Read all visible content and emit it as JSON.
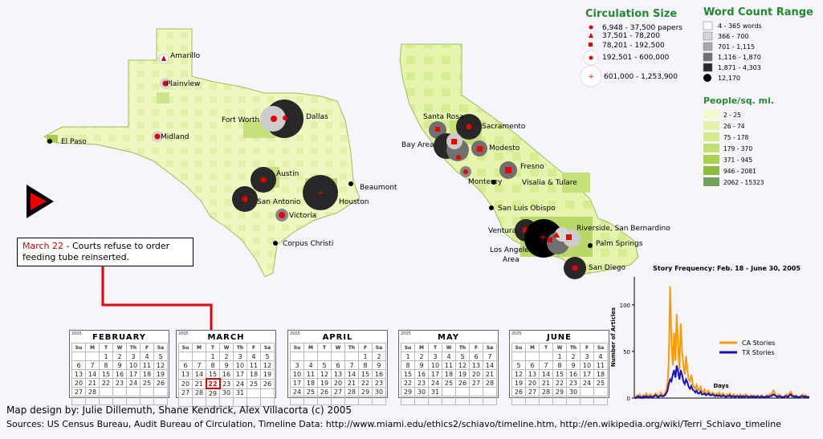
{
  "circulation_legend": {
    "title": "Circulation Size",
    "items": [
      "6,948 - 37,500 papers",
      "37,501 - 78,200",
      "78,201 - 192,500",
      "192,501 - 600,000",
      "601,000 - 1,253,900"
    ]
  },
  "word_count_legend": {
    "title": "Word Count Range",
    "items": [
      {
        "label": "4 - 365 words",
        "color": "#ffffff"
      },
      {
        "label": "366 - 700",
        "color": "#d4d4d4"
      },
      {
        "label": "701 - 1,115",
        "color": "#a8a8a8"
      },
      {
        "label": "1,116 - 1,870",
        "color": "#707070"
      },
      {
        "label": "1,871 - 4,303",
        "color": "#282828"
      },
      {
        "label": "12,170",
        "color": "#000000"
      }
    ]
  },
  "density_legend": {
    "title": "People/sq. mi.",
    "items": [
      {
        "label": "2 - 25",
        "color": "#f2fac8"
      },
      {
        "label": "26 - 74",
        "color": "#e4f3a8"
      },
      {
        "label": "75 - 178",
        "color": "#d5ea8c"
      },
      {
        "label": "179 - 370",
        "color": "#c2e06d"
      },
      {
        "label": "371 - 945",
        "color": "#a8d14d"
      },
      {
        "label": "946 - 2081",
        "color": "#8dbd38"
      },
      {
        "label": "2062 - 15323",
        "color": "#76a060"
      }
    ]
  },
  "texas_cities": [
    "Amarillo",
    "Plainview",
    "Fort Worth",
    "Dallas",
    "El Paso",
    "Midland",
    "Austin",
    "Beaumont",
    "San Antonio",
    "Houston",
    "Victoria",
    "Corpus Christi"
  ],
  "california_cities": [
    "Santa Rosa",
    "Sacramento",
    "Bay Area",
    "Modesto",
    "Fresno",
    "Monterey",
    "Visalia & Tulare",
    "San Luis Obispo",
    "Ventura",
    "Riverside, San Bernardino",
    "Palm Springs",
    "Los Angeles",
    "Area",
    "San Diego"
  ],
  "annotation": {
    "date": "March 22",
    "text": " -  Courts refuse to order",
    "text2": "feeding tube reinserted."
  },
  "calendars": [
    {
      "year": "2005",
      "month": "FEBRUARY",
      "start": 2,
      "days": 28
    },
    {
      "year": "2005",
      "month": "MARCH",
      "start": 2,
      "days": 31,
      "selected": 22
    },
    {
      "year": "2005",
      "month": "APRIL",
      "start": 5,
      "days": 30
    },
    {
      "year": "2005",
      "month": "MAY",
      "start": 0,
      "days": 31
    },
    {
      "year": "2005",
      "month": "JUNE",
      "start": 3,
      "days": 30
    }
  ],
  "weekday_headers": [
    "Su",
    "M",
    "T",
    "W",
    "Th",
    "F",
    "Sa"
  ],
  "credits": "Map design by: Julie Dillemuth, Shane Kendrick, Alex Villacorta (c)  2005",
  "sources": "Sources: US Census Bureau, Audit Bureau of Circulation, Timeline Data: http://www.miami.edu/ethics2/schiavo/timeline.htm, http://en.wikipedia.org/wiki/Terri_Schiavo_timeline",
  "chart_data": {
    "type": "line",
    "title": "Story Frequency: Feb. 18 - June 30, 2005",
    "xlabel": "Days",
    "ylabel": "Number of Articles",
    "ylim": [
      0,
      130
    ],
    "yticks": [
      0,
      50,
      100
    ],
    "legend_position": "right",
    "x_start_day": 1,
    "series": [
      {
        "name": "CA Stories",
        "color": "#ff9900",
        "values": [
          2,
          1,
          3,
          2,
          4,
          2,
          1,
          3,
          2,
          5,
          3,
          2,
          4,
          3,
          2,
          3,
          5,
          4,
          3,
          2,
          6,
          4,
          3,
          5,
          8,
          15,
          40,
          120,
          60,
          35,
          70,
          40,
          90,
          55,
          30,
          80,
          50,
          35,
          25,
          45,
          30,
          20,
          18,
          25,
          15,
          12,
          10,
          14,
          9,
          8,
          12,
          7,
          6,
          9,
          5,
          6,
          8,
          5,
          4,
          6,
          5,
          3,
          5,
          4,
          6,
          3,
          4,
          5,
          3,
          2,
          4,
          3,
          5,
          2,
          3,
          4,
          2,
          3,
          3,
          2,
          4,
          2,
          3,
          2,
          4,
          3,
          2,
          1,
          3,
          2,
          3,
          2,
          2,
          3,
          1,
          2,
          3,
          2,
          1,
          2,
          3,
          2,
          4,
          3,
          6,
          8,
          5,
          3,
          2,
          4,
          3,
          2,
          1,
          2,
          3,
          4,
          2,
          5,
          7,
          4,
          3,
          2,
          3,
          2,
          1,
          2,
          3,
          4,
          2,
          3,
          2,
          1,
          2
        ]
      },
      {
        "name": "TX Stories",
        "color": "#1010c8",
        "values": [
          1,
          0,
          1,
          2,
          1,
          1,
          0,
          2,
          1,
          2,
          1,
          1,
          2,
          1,
          1,
          2,
          3,
          2,
          1,
          2,
          3,
          2,
          2,
          3,
          5,
          8,
          15,
          20,
          18,
          25,
          30,
          22,
          35,
          28,
          20,
          30,
          25,
          18,
          15,
          20,
          17,
          12,
          10,
          13,
          9,
          8,
          6,
          8,
          5,
          5,
          7,
          4,
          4,
          5,
          3,
          4,
          5,
          3,
          3,
          4,
          3,
          2,
          3,
          2,
          3,
          2,
          2,
          3,
          2,
          1,
          2,
          2,
          3,
          1,
          2,
          2,
          1,
          2,
          2,
          1,
          2,
          1,
          2,
          1,
          2,
          2,
          1,
          1,
          2,
          1,
          2,
          1,
          1,
          2,
          1,
          1,
          2,
          1,
          1,
          1,
          2,
          1,
          2,
          2,
          3,
          4,
          3,
          2,
          1,
          2,
          2,
          1,
          1,
          1,
          2,
          2,
          1,
          3,
          4,
          2,
          2,
          1,
          2,
          1,
          1,
          1,
          2,
          2,
          1,
          2,
          1,
          1,
          1
        ]
      }
    ]
  }
}
